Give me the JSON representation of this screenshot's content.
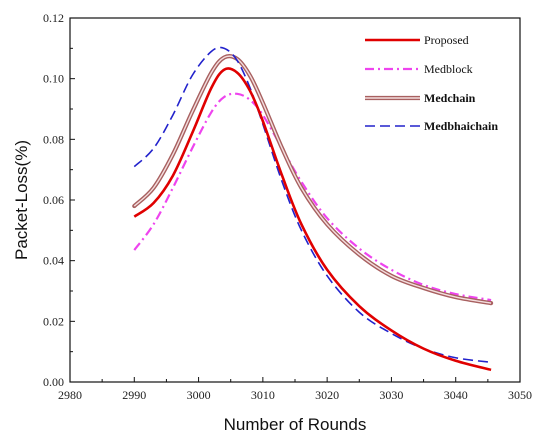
{
  "chart_data": {
    "type": "line",
    "title": "",
    "xlabel": "Number of Rounds",
    "ylabel": "Packet-Loss(%)",
    "xlim": [
      2980,
      3050
    ],
    "ylim": [
      0,
      0.12
    ],
    "xticks": [
      "2980",
      "2990",
      "3000",
      "3010",
      "3020",
      "3030",
      "3040",
      "3050"
    ],
    "yticks": [
      "0.00",
      "0.02",
      "0.04",
      "0.06",
      "0.08",
      "0.10",
      "0.12"
    ],
    "grid": false,
    "legend_position": "top-right",
    "series": [
      {
        "name": "Proposed",
        "color": "#e00000",
        "style": "solid",
        "x": [
          2990,
          2993,
          2996,
          2999,
          3002,
          3004,
          3006,
          3008,
          3010,
          3013,
          3016,
          3020,
          3025,
          3030,
          3035,
          3040,
          3045.5
        ],
        "y": [
          0.0545,
          0.059,
          0.068,
          0.082,
          0.097,
          0.103,
          0.102,
          0.096,
          0.086,
          0.068,
          0.052,
          0.037,
          0.025,
          0.017,
          0.011,
          0.007,
          0.004
        ]
      },
      {
        "name": "Medblock",
        "color": "#ee44ee",
        "style": "dashdot",
        "x": [
          2990,
          2993,
          2996,
          2999,
          3002,
          3004,
          3006,
          3008,
          3010,
          3013,
          3016,
          3020,
          3025,
          3030,
          3035,
          3040,
          3045.5
        ],
        "y": [
          0.0435,
          0.052,
          0.064,
          0.077,
          0.089,
          0.094,
          0.095,
          0.093,
          0.088,
          0.077,
          0.066,
          0.054,
          0.044,
          0.037,
          0.032,
          0.029,
          0.027
        ]
      },
      {
        "name": "Medchain",
        "color": "#a86060",
        "style": "double",
        "x": [
          2990,
          2993,
          2996,
          2999,
          3002,
          3004,
          3006,
          3008,
          3010,
          3013,
          3016,
          3020,
          3025,
          3030,
          3035,
          3040,
          3045.5
        ],
        "y": [
          0.058,
          0.064,
          0.075,
          0.089,
          0.102,
          0.107,
          0.1065,
          0.101,
          0.092,
          0.077,
          0.064,
          0.052,
          0.042,
          0.035,
          0.031,
          0.028,
          0.026
        ]
      },
      {
        "name": "Medbhaichain",
        "color": "#2222cc",
        "style": "dashed",
        "x": [
          2990,
          2993,
          2996,
          2999,
          3002,
          3004,
          3006,
          3008,
          3010,
          3013,
          3016,
          3020,
          3025,
          3030,
          3035,
          3040,
          3045.5
        ],
        "y": [
          0.071,
          0.077,
          0.088,
          0.101,
          0.109,
          0.11,
          0.106,
          0.097,
          0.085,
          0.066,
          0.05,
          0.035,
          0.023,
          0.016,
          0.011,
          0.008,
          0.0065
        ]
      }
    ]
  }
}
